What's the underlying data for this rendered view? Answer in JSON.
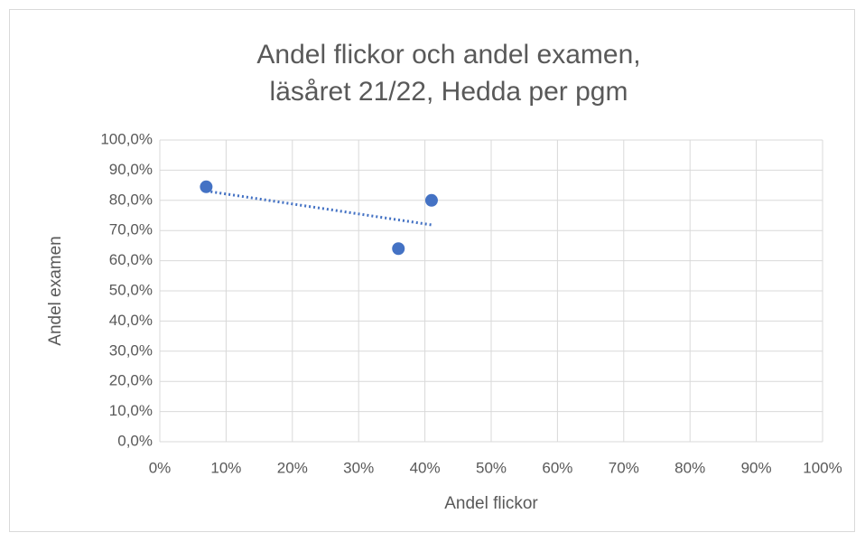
{
  "chart_data": {
    "type": "scatter",
    "title": [
      "Andel flickor och andel examen,",
      "läsåret 21/22, Hedda per pgm"
    ],
    "xlabel": "Andel flickor",
    "ylabel": "Andel examen",
    "x": [
      7,
      36,
      41
    ],
    "values": [
      84.5,
      64,
      80
    ],
    "color": "#4472c4",
    "trendline": "linear",
    "grid": true,
    "xlim": [
      0,
      100
    ],
    "xticks": [
      {
        "value": 0,
        "label": "0%"
      },
      {
        "value": 10,
        "label": "10%"
      },
      {
        "value": 20,
        "label": "20%"
      },
      {
        "value": 30,
        "label": "30%"
      },
      {
        "value": 40,
        "label": "40%"
      },
      {
        "value": 50,
        "label": "50%"
      },
      {
        "value": 60,
        "label": "60%"
      },
      {
        "value": 70,
        "label": "70%"
      },
      {
        "value": 80,
        "label": "80%"
      },
      {
        "value": 90,
        "label": "90%"
      },
      {
        "value": 100,
        "label": "100%"
      }
    ],
    "ylim": [
      0,
      100
    ],
    "yticks": [
      {
        "value": 0,
        "label": "0,0%"
      },
      {
        "value": 10,
        "label": "10,0%"
      },
      {
        "value": 20,
        "label": "20,0%"
      },
      {
        "value": 30,
        "label": "30,0%"
      },
      {
        "value": 40,
        "label": "40,0%"
      },
      {
        "value": 50,
        "label": "50,0%"
      },
      {
        "value": 60,
        "label": "60,0%"
      },
      {
        "value": 70,
        "label": "70,0%"
      },
      {
        "value": 80,
        "label": "80,0%"
      },
      {
        "value": 90,
        "label": "90,0%"
      },
      {
        "value": 100,
        "label": "100,0%"
      }
    ]
  }
}
